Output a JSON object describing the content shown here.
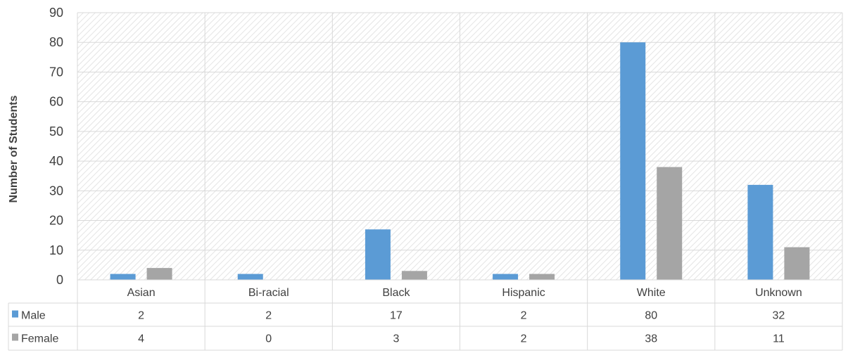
{
  "chart_data": {
    "type": "bar",
    "ylabel": "Number of Students",
    "ylim": [
      0,
      90
    ],
    "ytick_step": 10,
    "grid": true,
    "legend": "data-table",
    "categories": [
      "Asian",
      "Bi-racial",
      "Black",
      "Hispanic",
      "White",
      "Unknown"
    ],
    "series": [
      {
        "name": "Male",
        "color": "#5b9bd5",
        "values": [
          2,
          2,
          17,
          2,
          80,
          32
        ]
      },
      {
        "name": "Female",
        "color": "#a5a5a5",
        "values": [
          4,
          0,
          3,
          2,
          38,
          11
        ]
      }
    ]
  }
}
